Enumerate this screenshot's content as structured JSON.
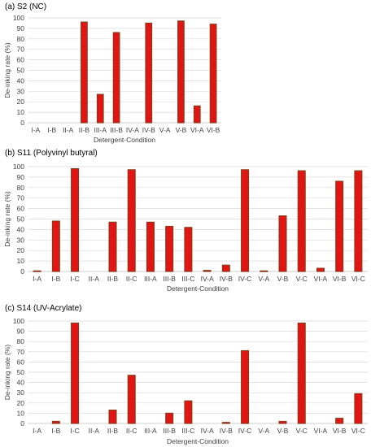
{
  "colors": {
    "bar_fill": "#e31414",
    "bar_stroke": "#8a3a1a"
  },
  "chart_data": [
    {
      "type": "bar",
      "title": "(a) S2 (NC)",
      "xlabel": "Detergent-Condition",
      "ylabel": "De-inking rate (%)",
      "ylim": [
        0,
        100
      ],
      "yticks": [
        0,
        10,
        20,
        30,
        40,
        50,
        60,
        70,
        80,
        90,
        100
      ],
      "grid": true,
      "categories": [
        "I-A",
        "I-B",
        "II-A",
        "II-B",
        "III-A",
        "III-B",
        "IV-A",
        "IV-B",
        "V-A",
        "V-B",
        "VI-A",
        "VI-B"
      ],
      "values": [
        0,
        0,
        0,
        96,
        27,
        86,
        0,
        95,
        0,
        97,
        16,
        94
      ]
    },
    {
      "type": "bar",
      "title": "(b) S11 (Polyvinyl butyral)",
      "xlabel": "Detergent-Condition",
      "ylabel": "De-inking rate (%)",
      "ylim": [
        0,
        100
      ],
      "yticks": [
        0,
        10,
        20,
        30,
        40,
        50,
        60,
        70,
        80,
        90,
        100
      ],
      "grid": true,
      "categories": [
        "I-A",
        "I-B",
        "I-C",
        "II-A",
        "II-B",
        "II-C",
        "III-A",
        "III-B",
        "III-C",
        "IV-A",
        "IV-B",
        "IV-C",
        "V-A",
        "V-B",
        "V-C",
        "VI-A",
        "VI-B",
        "VI-C"
      ],
      "values": [
        0.5,
        48,
        98,
        0,
        47,
        97,
        47,
        43,
        42,
        1,
        6,
        97,
        0.5,
        53,
        96,
        3,
        86,
        96
      ]
    },
    {
      "type": "bar",
      "title": "(c) S14 (UV-Acrylate)",
      "xlabel": "Detergent-Condition",
      "ylabel": "De-inking rate (%)",
      "ylim": [
        0,
        100
      ],
      "yticks": [
        0,
        10,
        20,
        30,
        40,
        50,
        60,
        70,
        80,
        90,
        100
      ],
      "grid": true,
      "categories": [
        "I-A",
        "I-B",
        "I-C",
        "II-A",
        "II-B",
        "II-C",
        "III-A",
        "III-B",
        "III-C",
        "IV-A",
        "IV-B",
        "IV-C",
        "V-A",
        "V-B",
        "V-C",
        "VI-A",
        "VI-B",
        "VI-C"
      ],
      "values": [
        0,
        2,
        98,
        0,
        13,
        47,
        0,
        10,
        22,
        0,
        1,
        71,
        0,
        2,
        98,
        0,
        5,
        29
      ]
    }
  ]
}
